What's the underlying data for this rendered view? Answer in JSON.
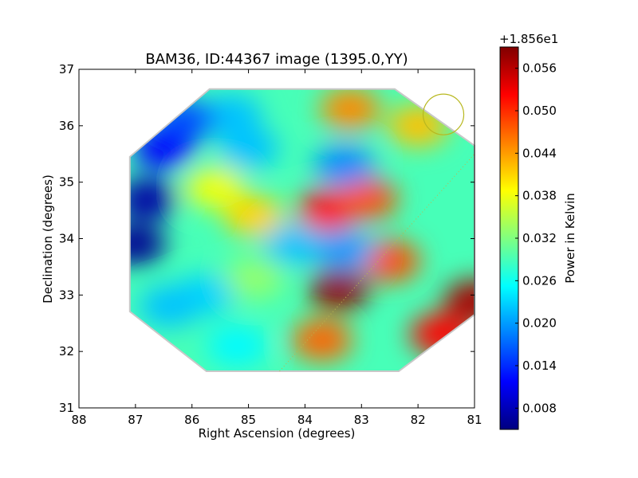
{
  "chart_data": {
    "type": "heatmap",
    "title": "BAM36, ID:44367 image (1395.0,YY)",
    "xlabel": "Right Ascension (degrees)",
    "ylabel": "Declination (degrees)",
    "xlim": [
      88,
      81
    ],
    "ylim": [
      31,
      37
    ],
    "x_ticks": [
      "88",
      "87",
      "86",
      "85",
      "84",
      "83",
      "82",
      "81"
    ],
    "y_ticks": [
      "31",
      "32",
      "33",
      "34",
      "35",
      "36",
      "37"
    ],
    "colorbar": {
      "label": "Power in Kelvin",
      "offset_text": "+1.856e1",
      "range": [
        0.005,
        0.059
      ],
      "ticks": [
        "0.008",
        "0.014",
        "0.020",
        "0.026",
        "0.032",
        "0.038",
        "0.044",
        "0.050",
        "0.056"
      ],
      "colormap": "jet"
    },
    "map_region": {
      "ra_range": [
        81.0,
        87.1
      ],
      "dec_range": [
        31.65,
        36.65
      ]
    },
    "blobs": [
      {
        "ra": 83.4,
        "dec": 33.1,
        "value": 0.058
      },
      {
        "ra": 81.0,
        "dec": 32.9,
        "value": 0.057
      },
      {
        "ra": 81.6,
        "dec": 32.3,
        "value": 0.052
      },
      {
        "ra": 83.6,
        "dec": 34.5,
        "value": 0.052
      },
      {
        "ra": 82.9,
        "dec": 34.7,
        "value": 0.048
      },
      {
        "ra": 82.5,
        "dec": 33.6,
        "value": 0.048
      },
      {
        "ra": 83.7,
        "dec": 32.2,
        "value": 0.047
      },
      {
        "ra": 83.2,
        "dec": 36.3,
        "value": 0.045
      },
      {
        "ra": 82.0,
        "dec": 36.0,
        "value": 0.042
      },
      {
        "ra": 84.9,
        "dec": 34.4,
        "value": 0.041
      },
      {
        "ra": 85.6,
        "dec": 34.9,
        "value": 0.038
      },
      {
        "ra": 84.9,
        "dec": 33.3,
        "value": 0.033
      },
      {
        "ra": 84.2,
        "dec": 33.9,
        "value": 0.022
      },
      {
        "ra": 83.3,
        "dec": 33.8,
        "value": 0.02
      },
      {
        "ra": 83.3,
        "dec": 35.3,
        "value": 0.019
      },
      {
        "ra": 85.0,
        "dec": 35.6,
        "value": 0.022
      },
      {
        "ra": 85.8,
        "dec": 33.0,
        "value": 0.023
      },
      {
        "ra": 85.3,
        "dec": 36.2,
        "value": 0.022
      },
      {
        "ra": 86.1,
        "dec": 36.1,
        "value": 0.016
      },
      {
        "ra": 86.5,
        "dec": 35.6,
        "value": 0.012
      },
      {
        "ra": 86.8,
        "dec": 34.7,
        "value": 0.007
      },
      {
        "ra": 87.0,
        "dec": 33.9,
        "value": 0.006
      },
      {
        "ra": 86.4,
        "dec": 32.8,
        "value": 0.022
      },
      {
        "ra": 85.2,
        "dec": 32.1,
        "value": 0.025
      }
    ],
    "beam_circle": {
      "ra": 81.55,
      "dec": 36.2,
      "radius_deg": 0.36
    },
    "dotted_line": {
      "from": [
        84.45,
        31.65
      ],
      "to": [
        81.0,
        35.5
      ]
    }
  }
}
